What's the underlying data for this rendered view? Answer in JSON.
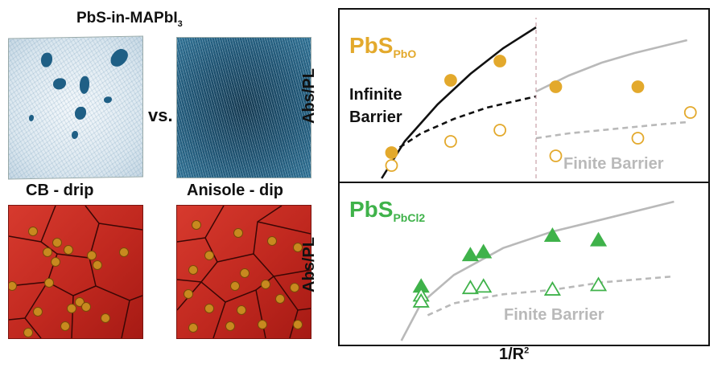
{
  "left": {
    "title": "PbS-in-MAPbI",
    "title_sub": "3",
    "vs_label": "vs.",
    "label_left": "CB - drip",
    "label_right": "Anisole - dip"
  },
  "colors": {
    "pbo": "#e3a92c",
    "pbcl2": "#3fb24a",
    "infinite": "#111111",
    "finite": "#b9b9b9",
    "grain": "#c8281f",
    "particle": "#c8891f"
  },
  "chart_data": [
    {
      "type": "scatter",
      "title": "PbS",
      "title_sub": "PbO",
      "ylabel": "Abs/PL",
      "xlabel": "",
      "grid": false,
      "xlim": [
        0,
        10
      ],
      "ylim": [
        0,
        10
      ],
      "annotations": {
        "infinite_line1": "Infinite",
        "infinite_line2": "Barrier",
        "finite": "Finite Barrier"
      },
      "series": [
        {
          "filled": true,
          "marker": "circle",
          "x": [
            0.6,
            2.4,
            3.9,
            5.6,
            8.1
          ],
          "y": [
            1.6,
            6.1,
            7.3,
            5.7,
            5.7
          ]
        },
        {
          "filled": false,
          "marker": "circle",
          "x": [
            0.6,
            2.4,
            3.9,
            5.6,
            8.1,
            9.7
          ],
          "y": [
            0.8,
            2.3,
            3.0,
            1.4,
            2.5,
            4.1
          ]
        }
      ],
      "lines": [
        {
          "style": "solid",
          "color_key": "infinite",
          "x": [
            0.3,
            1.0,
            2.0,
            3.0,
            4.0,
            5.0
          ],
          "y": [
            0.0,
            2.3,
            4.6,
            6.5,
            8.1,
            9.4
          ]
        },
        {
          "style": "dashed",
          "color_key": "infinite",
          "x": [
            0.6,
            1.5,
            2.5,
            3.5,
            5.0
          ],
          "y": [
            1.6,
            2.8,
            3.7,
            4.4,
            5.1
          ]
        },
        {
          "style": "solid",
          "color_key": "finite",
          "x": [
            5.0,
            6.0,
            7.0,
            8.0,
            9.0,
            9.6
          ],
          "y": [
            5.4,
            6.4,
            7.2,
            7.8,
            8.3,
            8.6
          ]
        },
        {
          "style": "dashed",
          "color_key": "finite",
          "x": [
            5.0,
            6.0,
            7.0,
            8.0,
            9.0,
            9.6
          ],
          "y": [
            2.5,
            2.8,
            3.0,
            3.2,
            3.4,
            3.5
          ]
        },
        {
          "style": "dashed-vertical",
          "color_key": "divider",
          "x": [
            5.0,
            5.0
          ],
          "y": [
            0.0,
            10.0
          ]
        }
      ]
    },
    {
      "type": "scatter",
      "title": "PbS",
      "title_sub": "PbCl2",
      "ylabel": "Abs/PL",
      "xlabel": "1/R",
      "xlabel_sup": "2",
      "grid": false,
      "xlim": [
        0,
        10
      ],
      "ylim": [
        0,
        10
      ],
      "annotations": {
        "finite": "Finite Barrier"
      },
      "series": [
        {
          "filled": true,
          "marker": "triangle",
          "x": [
            1.5,
            3.0,
            3.4,
            5.5,
            6.9
          ],
          "y": [
            3.6,
            5.7,
            5.9,
            7.0,
            6.7
          ]
        },
        {
          "filled": false,
          "marker": "triangle",
          "x": [
            1.5,
            1.5,
            3.0,
            3.4,
            5.5,
            6.9
          ],
          "y": [
            3.0,
            2.6,
            3.5,
            3.6,
            3.4,
            3.7
          ]
        }
      ],
      "lines": [
        {
          "style": "solid",
          "color_key": "finite",
          "x": [
            0.9,
            1.5,
            2.5,
            4.0,
            5.5,
            7.0,
            9.2
          ],
          "y": [
            0.0,
            2.5,
            4.4,
            6.2,
            7.3,
            8.1,
            9.3
          ]
        },
        {
          "style": "dashed",
          "color_key": "finite",
          "x": [
            1.7,
            2.5,
            4.0,
            5.5,
            7.0,
            9.2
          ],
          "y": [
            1.7,
            2.5,
            3.1,
            3.4,
            3.9,
            4.3
          ]
        }
      ]
    }
  ]
}
